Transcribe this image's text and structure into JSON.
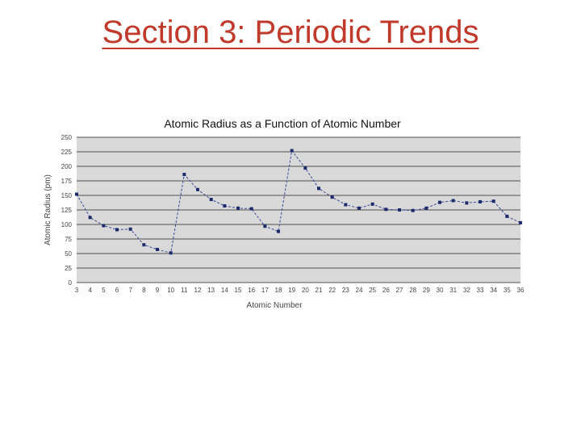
{
  "slide": {
    "title": "Section 3: Periodic Trends"
  },
  "chart_data": {
    "type": "line",
    "title": "Atomic Radius as a Function of Atomic Number",
    "xlabel": "Atomic Number",
    "ylabel": "Atomic Radius (pm)",
    "ylim": [
      0,
      250
    ],
    "yticks": [
      0,
      25,
      50,
      75,
      100,
      125,
      150,
      175,
      200,
      225,
      250
    ],
    "grid": true,
    "plot_background": "#d9d9d9",
    "line_color": "#3a4a9a",
    "marker_color": "#1a2a6a",
    "x": [
      3,
      4,
      5,
      6,
      7,
      8,
      9,
      10,
      11,
      12,
      13,
      14,
      15,
      16,
      17,
      18,
      19,
      20,
      21,
      22,
      23,
      24,
      25,
      26,
      27,
      28,
      29,
      30,
      31,
      32,
      33,
      34,
      35,
      36
    ],
    "series": [
      {
        "values": [
          152,
          112,
          98,
          91,
          92,
          65,
          57,
          51,
          186,
          160,
          143,
          132,
          128,
          127,
          97,
          88,
          227,
          197,
          162,
          147,
          134,
          128,
          135,
          126,
          125,
          124,
          128,
          138,
          141,
          137,
          139,
          140,
          114,
          103
        ]
      }
    ]
  }
}
